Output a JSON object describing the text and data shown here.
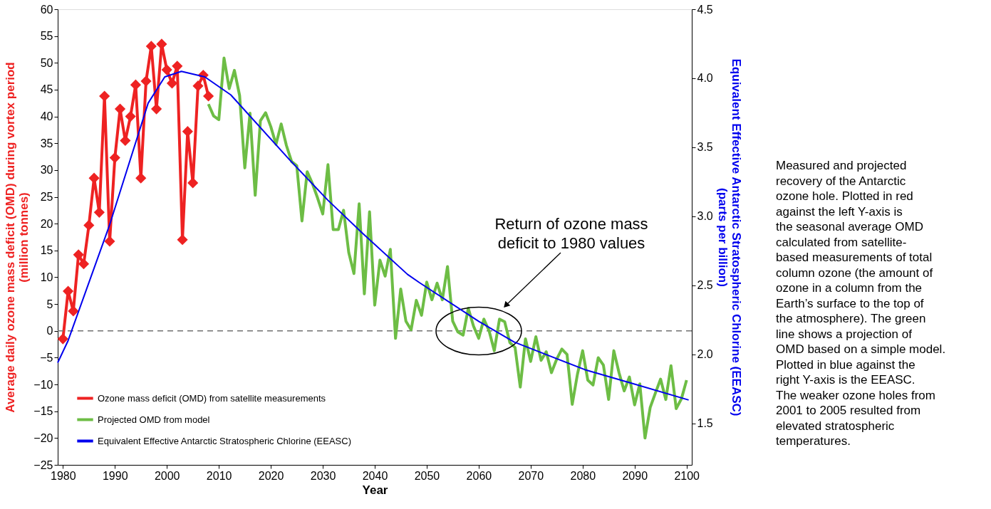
{
  "chart_data": {
    "type": "line",
    "xlabel": "Year",
    "ylabel": "Average daily ozone mass deficit (OMD) during vortex period\n(million tonnes)",
    "y2label": "Equivalent Effective Antarctic Stratospheric Chlorine (EEASC)\n(parts per billion)",
    "xlim": [
      1979,
      2101
    ],
    "xticks": [
      1980,
      1990,
      2000,
      2010,
      2020,
      2030,
      2040,
      2050,
      2060,
      2070,
      2080,
      2090,
      2100
    ],
    "ylim": [
      -25,
      60
    ],
    "yticks": [
      -25,
      -20,
      -15,
      -10,
      -5,
      0,
      5,
      10,
      15,
      20,
      25,
      30,
      35,
      40,
      45,
      50,
      55,
      60
    ],
    "y2lim": [
      1.2,
      4.5
    ],
    "y2ticks": [
      1.5,
      {
        "value": 2,
        "label": "2.0"
      },
      2.5,
      {
        "value": 3,
        "label": "3.0"
      },
      3.5,
      {
        "value": 4,
        "label": "4.0"
      },
      4.5
    ],
    "legend": "bottom left",
    "grid": false,
    "series": [
      {
        "name": "Ozone mass deficit (OMD) from satellite measurements",
        "color": "#ee2222",
        "marker": "diamond",
        "x": [
          1980,
          1981,
          1982,
          1983,
          1984,
          1985,
          1986,
          1987,
          1988,
          1989,
          1990,
          1991,
          1992,
          1993,
          1994,
          1995,
          1996,
          1997,
          1998,
          1999,
          2000,
          2001,
          2002,
          2003,
          2004,
          2005,
          2006,
          2007,
          2008
        ],
        "values": [
          -1.5,
          7.4,
          3.7,
          14.2,
          12.5,
          19.7,
          28.5,
          22.1,
          43.8,
          16.7,
          32.3,
          41.4,
          35.5,
          40.0,
          45.9,
          28.5,
          46.6,
          53.1,
          41.4,
          53.5,
          48.7,
          46.2,
          49.4,
          17.0,
          37.2,
          27.6,
          45.7,
          47.7,
          43.8
        ]
      },
      {
        "name": "Projected OMD from model",
        "color": "#6dbd45",
        "x": [
          2008,
          2009,
          2010,
          2011,
          2012,
          2013,
          2014,
          2015,
          2016,
          2017,
          2018,
          2019,
          2020,
          2021,
          2022,
          2023,
          2024,
          2025,
          2026,
          2027,
          2028,
          2029,
          2030,
          2031,
          2032,
          2033,
          2034,
          2035,
          2036,
          2037,
          2038,
          2039,
          2040,
          2041,
          2042,
          2043,
          2044,
          2045,
          2046,
          2047,
          2048,
          2049,
          2050,
          2051,
          2052,
          2053,
          2054,
          2055,
          2056,
          2057,
          2058,
          2059,
          2060,
          2061,
          2062,
          2063,
          2064,
          2065,
          2066,
          2067,
          2068,
          2069,
          2070,
          2071,
          2072,
          2073,
          2074,
          2075,
          2076,
          2077,
          2078,
          2079,
          2080,
          2081,
          2082,
          2083,
          2084,
          2085,
          2086,
          2087,
          2088,
          2089,
          2090,
          2091,
          2092,
          2093,
          2094,
          2095,
          2096,
          2097,
          2098,
          2099,
          2100
        ],
        "values": [
          42.3,
          40.1,
          39.4,
          50.9,
          45.2,
          48.6,
          43.9,
          30.4,
          40.6,
          25.3,
          39.2,
          40.7,
          38.1,
          34.8,
          38.6,
          34.6,
          31.6,
          30.8,
          20.5,
          29.7,
          27.5,
          24.8,
          21.8,
          31.0,
          18.9,
          18.9,
          22.5,
          14.6,
          10.7,
          23.7,
          6.9,
          22.2,
          4.8,
          13.2,
          10.2,
          15.2,
          -1.4,
          7.8,
          1.8,
          0.2,
          5.7,
          2.9,
          9.1,
          5.8,
          8.9,
          5.8,
          12.0,
          1.8,
          -0.2,
          -0.8,
          4.2,
          0.9,
          -1.4,
          2.2,
          0.0,
          -3.7,
          2.2,
          1.7,
          -2.2,
          -3.1,
          -10.5,
          -1.5,
          -5.7,
          -1.1,
          -5.5,
          -3.9,
          -7.8,
          -5.3,
          -3.4,
          -4.4,
          -13.7,
          -8.1,
          -3.7,
          -9.2,
          -10.1,
          -5.0,
          -6.4,
          -12.8,
          -3.7,
          -7.8,
          -11.2,
          -8.6,
          -13.8,
          -9.9,
          -20.0,
          -14.3,
          -11.6,
          -9.0,
          -12.8,
          -6.5,
          -14.5,
          -12.7,
          -9.2
        ]
      },
      {
        "name": "Equivalent Effective Antarctic Stratospheric Chlorine (EEASC)",
        "color": "#0000ee",
        "axis": "y2",
        "x": [
          1979,
          1981,
          1989,
          1996.4,
          1999.6,
          2002.8,
          2007.3,
          2012.3,
          2023.6,
          2030.9,
          2037.3,
          2046.3,
          2048.6,
          2060,
          2066.8,
          2080.4,
          2089.5,
          2100.4
        ],
        "values": [
          1.94,
          2.1,
          2.94,
          3.82,
          4.01,
          4.05,
          4.01,
          3.88,
          3.41,
          3.12,
          2.89,
          2.58,
          2.52,
          2.24,
          2.09,
          1.89,
          1.79,
          1.67
        ]
      }
    ],
    "ref_lines": [
      {
        "axis": "y",
        "value": 0,
        "color": "#707070",
        "line_style": "dashed"
      }
    ],
    "annotations": [
      "Return of ozone mass deficit to 1980 values",
      "Measured and projected recovery of the Antarctic ozone hole. Plotted in red against the left Y-axis is the seasonal average OMD calculated from satellite-based measurements of total column ozone (the amount of ozone in a column from the Earth’s surface to the top of the atmosphere). The green line shows a projection of OMD based on a simple model. Plotted in blue against the right Y-axis is the EEASC. The weaker ozone holes from 2001 to 2005 resulted from elevated stratospheric temperatures."
    ]
  }
}
